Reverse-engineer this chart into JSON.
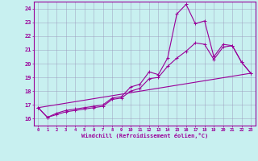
{
  "title": "",
  "xlabel": "Windchill (Refroidissement éolien,°C)",
  "ylabel": "",
  "background_color": "#c8f0f0",
  "line_color": "#990099",
  "xlim": [
    -0.5,
    23.5
  ],
  "ylim": [
    15.5,
    24.5
  ],
  "xticks": [
    0,
    1,
    2,
    3,
    4,
    5,
    6,
    7,
    8,
    9,
    10,
    11,
    12,
    13,
    14,
    15,
    16,
    17,
    18,
    19,
    20,
    21,
    22,
    23
  ],
  "yticks": [
    16,
    17,
    18,
    19,
    20,
    21,
    22,
    23,
    24
  ],
  "line1_x": [
    0,
    1,
    2,
    3,
    4,
    5,
    6,
    7,
    8,
    9,
    10,
    11,
    12,
    13,
    14,
    15,
    16,
    17,
    18,
    19,
    20,
    21,
    22,
    23
  ],
  "line1_y": [
    16.8,
    16.1,
    16.4,
    16.6,
    16.7,
    16.8,
    16.9,
    17.0,
    17.5,
    17.6,
    18.3,
    18.5,
    19.4,
    19.2,
    20.4,
    23.6,
    24.3,
    22.9,
    23.1,
    20.5,
    21.4,
    21.3,
    20.1,
    19.3
  ],
  "line2_x": [
    0,
    1,
    2,
    3,
    4,
    5,
    6,
    7,
    8,
    9,
    10,
    11,
    12,
    13,
    14,
    15,
    16,
    17,
    18,
    19,
    20,
    21,
    22,
    23
  ],
  "line2_y": [
    16.8,
    16.1,
    16.3,
    16.5,
    16.6,
    16.7,
    16.8,
    16.9,
    17.4,
    17.5,
    18.0,
    18.2,
    18.9,
    19.0,
    19.8,
    20.4,
    20.9,
    21.5,
    21.4,
    20.3,
    21.2,
    21.3,
    20.1,
    19.3
  ],
  "line3_x": [
    0,
    23
  ],
  "line3_y": [
    16.8,
    19.3
  ],
  "grid_color": "#9999bb",
  "marker": "+"
}
